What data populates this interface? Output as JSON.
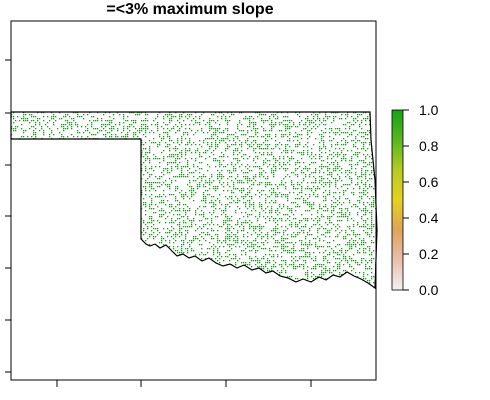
{
  "title": "=<3% maximum slope",
  "map": {
    "region": "Oklahoma",
    "raster_color": "#1a9a1a",
    "background": "#ffffff",
    "border_color": "#000000"
  },
  "legend": {
    "ticks": [
      "1.0",
      "0.8",
      "0.6",
      "0.4",
      "0.2",
      "0.0"
    ],
    "colors": [
      "#f2f2f2",
      "#e9bfae",
      "#e0a35a",
      "#e8d020",
      "#b5cc22",
      "#58b81e",
      "#13a314"
    ],
    "range": [
      0,
      1
    ]
  }
}
